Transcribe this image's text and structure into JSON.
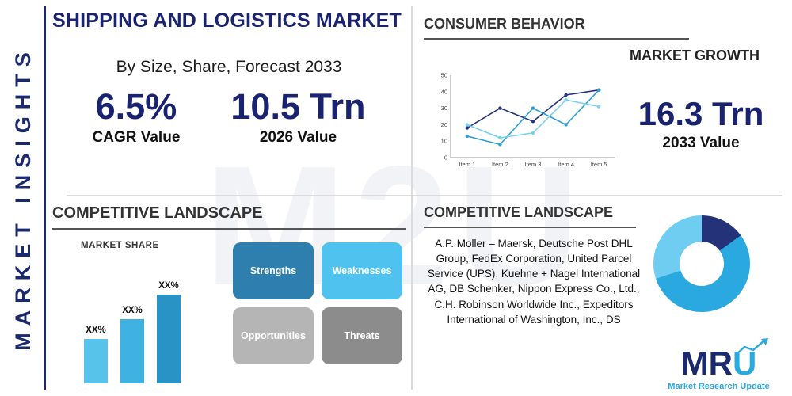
{
  "watermark": "M2U",
  "sidebar": {
    "vertical_title": "MARKET INSIGHTS"
  },
  "header": {
    "title": "SHIPPING AND LOGISTICS MARKET",
    "subtitle": "By Size, Share, Forecast 2033"
  },
  "stats": {
    "cagr": {
      "value": "6.5%",
      "label": "CAGR Value"
    },
    "value2026": {
      "value": "10.5 Trn",
      "label": "2026 Value"
    },
    "value2033": {
      "value": "16.3 Trn",
      "label": "2033 Value"
    }
  },
  "consumer_behavior": {
    "title": "CONSUMER BEHAVIOR",
    "subtitle": "MARKET GROWTH"
  },
  "competitive_landscape_left": {
    "title": "COMPETITIVE LANDSCAPE",
    "swot": [
      {
        "label": "Strengths",
        "color": "#2e7fae"
      },
      {
        "label": "Weaknesses",
        "color": "#4fc2ef"
      },
      {
        "label": "Opportunities",
        "color": "#b5b5b5"
      },
      {
        "label": "Threats",
        "color": "#8c8c8c"
      }
    ]
  },
  "competitive_landscape_right": {
    "title": "COMPETITIVE LANDSCAPE",
    "companies": "A.P. Moller – Maersk, Deutsche Post DHL Group, FedEx Corporation, United Parcel Service (UPS), Kuehne + Nagel International AG, DB Schenker, Nippon Express Co., Ltd., C.H. Robinson Worldwide Inc., Expeditors International of Washington, Inc., DS"
  },
  "logo": {
    "letters": [
      "M",
      "R",
      "U"
    ],
    "tagline": "Market Research Update"
  },
  "colors": {
    "navy": "#1a2370",
    "accent_blue": "#2aa9e0",
    "divider": "#dcdcdc"
  },
  "chart_data": [
    {
      "type": "line",
      "x": [
        "Item 1",
        "Item 2",
        "Item 3",
        "Item 4",
        "Item 5"
      ],
      "series": [
        {
          "name": "dark-navy",
          "color": "#24327c",
          "values": [
            18,
            30,
            22,
            38,
            41
          ]
        },
        {
          "name": "medium-blue",
          "color": "#2d9fd6",
          "values": [
            13,
            8,
            30,
            20,
            41
          ]
        },
        {
          "name": "light-blue",
          "color": "#7ad0ef",
          "values": [
            20,
            12,
            15,
            35,
            31
          ]
        }
      ],
      "ylim": [
        0,
        50
      ],
      "yticks": [
        0,
        10,
        20,
        30,
        40,
        50
      ],
      "grid": false,
      "legend": false
    },
    {
      "type": "bar",
      "title": "MARKET SHARE",
      "labels": [
        "XX%",
        "XX%",
        "XX%"
      ],
      "values": [
        40,
        58,
        80
      ],
      "colors": [
        "#57c2ea",
        "#3fb2e2",
        "#2a93c5"
      ],
      "ymax": 100
    },
    {
      "type": "pie",
      "donut": true,
      "slices": [
        {
          "label": "segment-1",
          "value": 15,
          "color": "#243279"
        },
        {
          "label": "segment-2",
          "value": 55,
          "color": "#2aa9e0"
        },
        {
          "label": "segment-3",
          "value": 30,
          "color": "#6fcdf1"
        }
      ]
    }
  ]
}
